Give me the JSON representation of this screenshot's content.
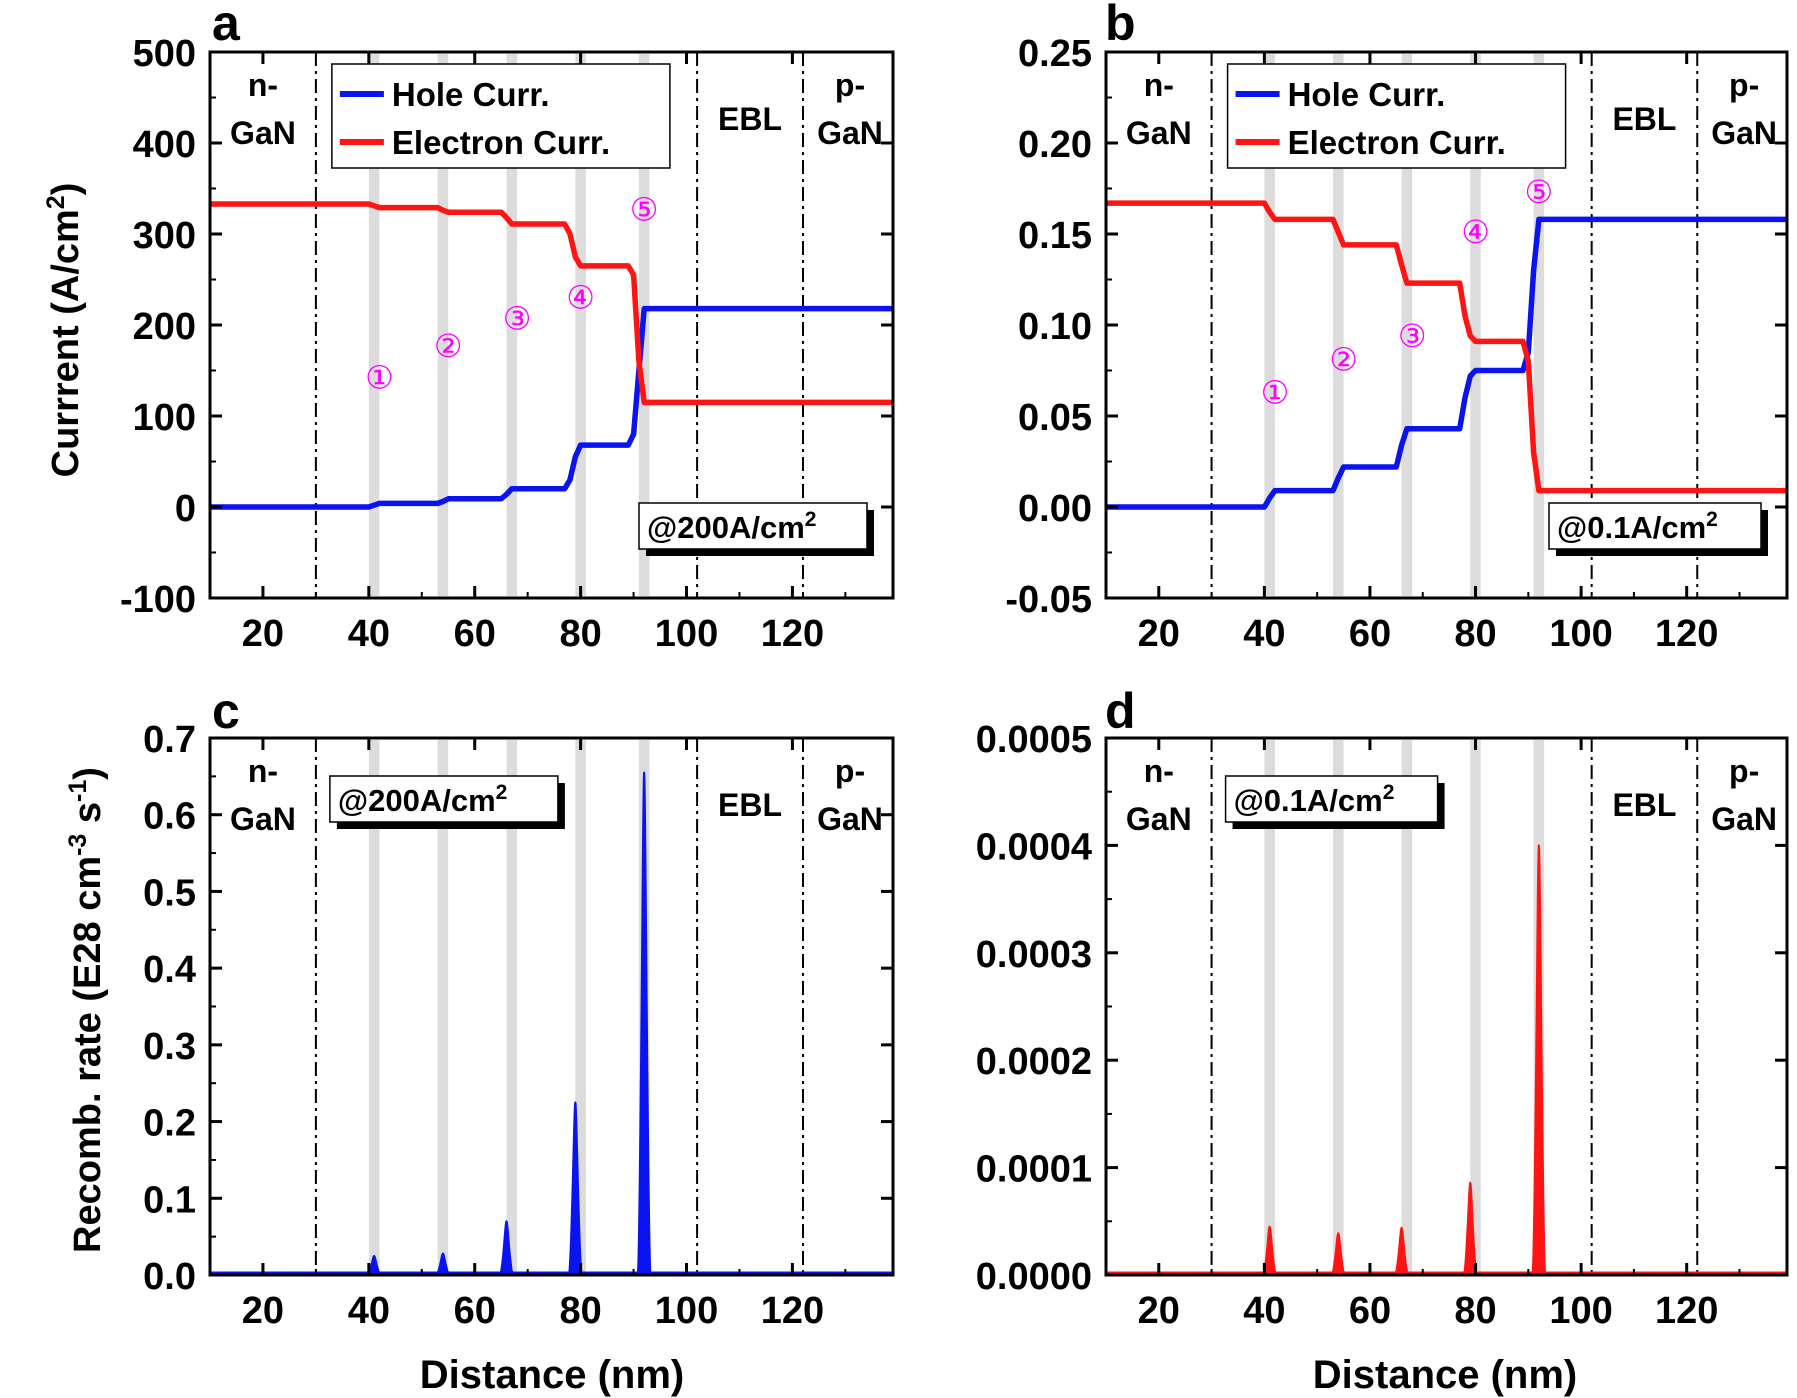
{
  "colors": {
    "hole": "#0a14f0",
    "electron": "#ff1414",
    "marker": "#ff00ff",
    "qw_band": "#dcdcdc",
    "axis": "#000000"
  },
  "shared_x": {
    "xlabel": "Distance (nm)",
    "xlim": [
      10,
      139
    ],
    "xticks": [
      20,
      40,
      60,
      80,
      100,
      120
    ],
    "xtick_labels": [
      "20",
      "40",
      "60",
      "80",
      "100",
      "120"
    ]
  },
  "region_labels": {
    "n_gan": [
      "n-",
      "GaN"
    ],
    "ebl": "EBL",
    "p_gan": [
      "p-",
      "GaN"
    ]
  },
  "boundaries_nm": [
    30,
    102,
    122
  ],
  "quantum_wells_nm": [
    [
      40,
      42
    ],
    [
      53,
      55
    ],
    [
      66,
      68
    ],
    [
      79,
      81
    ],
    [
      91,
      93
    ]
  ],
  "chart_data": [
    {
      "panel": "a",
      "type": "line",
      "ylabel": "Currrent (A/cm",
      "ylabel_sup": "2",
      "ylabel_close": ")",
      "ylim": [
        -100,
        500
      ],
      "yticks": [
        -100,
        0,
        100,
        200,
        300,
        400,
        500
      ],
      "ytick_labels": [
        "-100",
        "0",
        "100",
        "200",
        "300",
        "400",
        "500"
      ],
      "legend": [
        {
          "name": "Hole Curr.",
          "color_key": "hole"
        },
        {
          "name": "Electron Curr.",
          "color_key": "electron"
        }
      ],
      "annotation": {
        "text": "@200A/cm",
        "sup": "2"
      },
      "markers": [
        {
          "label": "①",
          "x": 42,
          "y": 130
        },
        {
          "label": "②",
          "x": 55,
          "y": 165
        },
        {
          "label": "③",
          "x": 68,
          "y": 195
        },
        {
          "label": "④",
          "x": 80,
          "y": 218
        },
        {
          "label": "⑤",
          "x": 92,
          "y": 315
        }
      ],
      "series": [
        {
          "name": "Hole Curr.",
          "color_key": "hole",
          "x": [
            10,
            40,
            41,
            42,
            53,
            54,
            55,
            65,
            66,
            67,
            77,
            78,
            79,
            80,
            89,
            90,
            91,
            92,
            139
          ],
          "y": [
            0,
            0,
            2,
            4,
            4,
            6,
            9,
            9,
            14,
            20,
            20,
            30,
            55,
            68,
            68,
            80,
            150,
            218,
            218
          ]
        },
        {
          "name": "Electron Curr.",
          "color_key": "electron",
          "x": [
            10,
            40,
            41,
            42,
            53,
            54,
            55,
            65,
            66,
            67,
            77,
            78,
            79,
            80,
            89,
            90,
            91,
            92,
            139
          ],
          "y": [
            333,
            333,
            331,
            329,
            329,
            326,
            324,
            324,
            318,
            311,
            311,
            300,
            275,
            265,
            265,
            255,
            160,
            115,
            115
          ]
        }
      ]
    },
    {
      "panel": "b",
      "type": "line",
      "ylim": [
        -0.05,
        0.25
      ],
      "yticks": [
        -0.05,
        0,
        0.05,
        0.1,
        0.15,
        0.2,
        0.25
      ],
      "ytick_labels": [
        "-0.05",
        "0.00",
        "0.05",
        "0.10",
        "0.15",
        "0.20",
        "0.25"
      ],
      "legend": [
        {
          "name": "Hole Curr.",
          "color_key": "hole"
        },
        {
          "name": "Electron Curr.",
          "color_key": "electron"
        }
      ],
      "annotation": {
        "text": "@0.1A/cm",
        "sup": "2"
      },
      "markers": [
        {
          "label": "①",
          "x": 42,
          "y": 0.057
        },
        {
          "label": "②",
          "x": 55,
          "y": 0.075
        },
        {
          "label": "③",
          "x": 68,
          "y": 0.088
        },
        {
          "label": "④",
          "x": 80,
          "y": 0.145
        },
        {
          "label": "⑤",
          "x": 92,
          "y": 0.167
        }
      ],
      "series": [
        {
          "name": "Hole Curr.",
          "color_key": "hole",
          "x": [
            10,
            40,
            41,
            42,
            53,
            54,
            55,
            65,
            66,
            67,
            77,
            78,
            79,
            80,
            89,
            90,
            91,
            92,
            139
          ],
          "y": [
            0,
            0,
            0.005,
            0.009,
            0.009,
            0.016,
            0.022,
            0.022,
            0.034,
            0.043,
            0.043,
            0.06,
            0.072,
            0.075,
            0.075,
            0.085,
            0.13,
            0.158,
            0.158
          ]
        },
        {
          "name": "Electron Curr.",
          "color_key": "electron",
          "x": [
            10,
            40,
            41,
            42,
            53,
            54,
            55,
            65,
            66,
            67,
            77,
            78,
            79,
            80,
            89,
            90,
            91,
            92,
            139
          ],
          "y": [
            0.167,
            0.167,
            0.162,
            0.158,
            0.158,
            0.151,
            0.144,
            0.144,
            0.133,
            0.123,
            0.123,
            0.105,
            0.094,
            0.091,
            0.091,
            0.08,
            0.03,
            0.009,
            0.009
          ]
        }
      ]
    },
    {
      "panel": "c",
      "type": "area",
      "ylabel": "Recomb. rate (E28 cm",
      "ylabel_sup1": "-3",
      "ylabel_mid": " s",
      "ylabel_sup2": "-1",
      "ylabel_close": ")",
      "ylim": [
        0,
        0.7
      ],
      "yticks": [
        0,
        0.1,
        0.2,
        0.3,
        0.4,
        0.5,
        0.6,
        0.7
      ],
      "ytick_labels": [
        "0.0",
        "0.1",
        "0.2",
        "0.3",
        "0.4",
        "0.5",
        "0.6",
        "0.7"
      ],
      "annotation": {
        "text": "@200A/cm",
        "sup": "2"
      },
      "series": [
        {
          "color_key": "hole",
          "peaks": [
            {
              "x": 41,
              "y": 0.025
            },
            {
              "x": 54,
              "y": 0.028
            },
            {
              "x": 66,
              "y": 0.07
            },
            {
              "x": 79,
              "y": 0.225
            },
            {
              "x": 92,
              "y": 0.655
            }
          ]
        }
      ]
    },
    {
      "panel": "d",
      "type": "area",
      "ylim": [
        0,
        0.0005
      ],
      "yticks": [
        0,
        0.0001,
        0.0002,
        0.0003,
        0.0004,
        0.0005
      ],
      "ytick_labels": [
        "0.0000",
        "0.0001",
        "0.0002",
        "0.0003",
        "0.0004",
        "0.0005"
      ],
      "annotation": {
        "text": "@0.1A/cm",
        "sup": "2"
      },
      "series": [
        {
          "color_key": "electron",
          "peaks": [
            {
              "x": 41,
              "y": 4.5e-05
            },
            {
              "x": 54,
              "y": 3.9e-05
            },
            {
              "x": 66,
              "y": 4.4e-05
            },
            {
              "x": 79,
              "y": 8.6e-05
            },
            {
              "x": 92,
              "y": 0.0004
            }
          ]
        }
      ]
    }
  ]
}
